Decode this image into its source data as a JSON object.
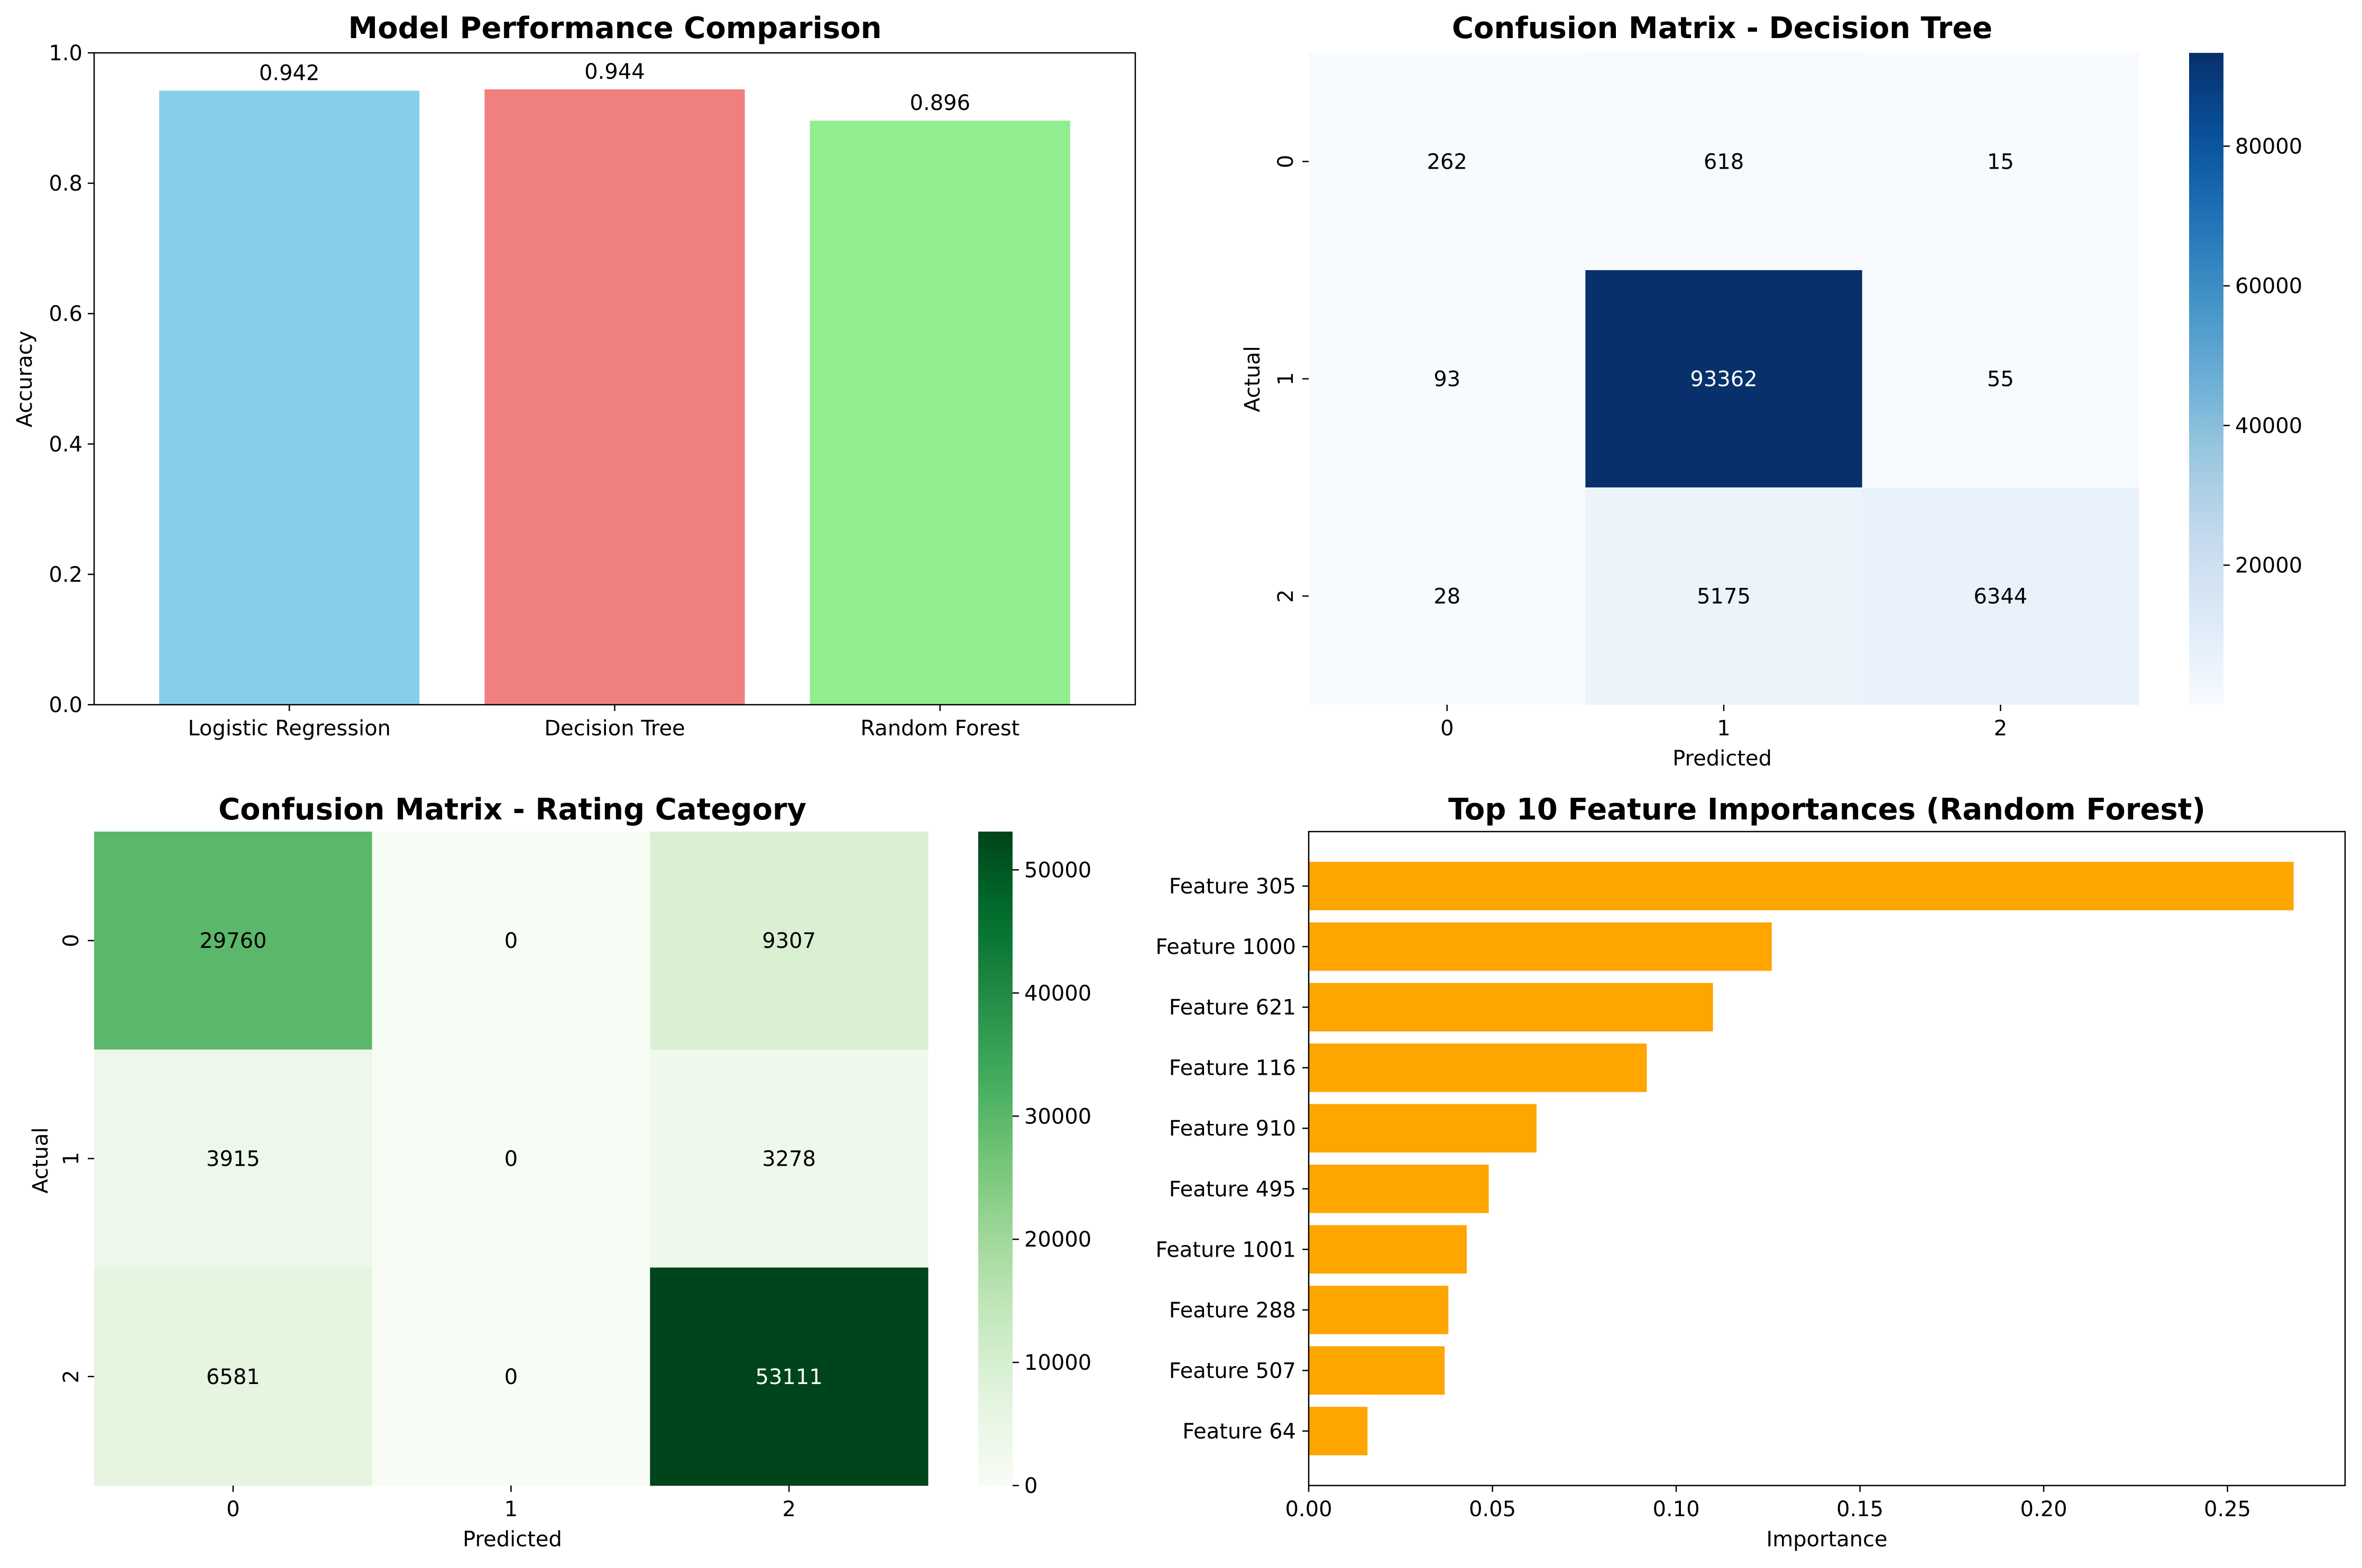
{
  "chart_data": [
    {
      "type": "bar",
      "title": "Model Performance Comparison",
      "xlabel": "",
      "ylabel": "Accuracy",
      "ylim": [
        0,
        1.0
      ],
      "yticks": [
        "0.0",
        "0.2",
        "0.4",
        "0.6",
        "0.8",
        "1.0"
      ],
      "categories": [
        "Logistic Regression",
        "Decision Tree",
        "Random Forest"
      ],
      "values": [
        0.942,
        0.944,
        0.896
      ],
      "value_labels": [
        "0.942",
        "0.944",
        "0.896"
      ],
      "colors": [
        "#87ceeb",
        "#f08080",
        "#90ee90"
      ]
    },
    {
      "type": "heatmap",
      "title": "Confusion Matrix - Decision Tree",
      "xlabel": "Predicted",
      "ylabel": "Actual",
      "xticks": [
        "0",
        "1",
        "2"
      ],
      "yticks": [
        "0",
        "1",
        "2"
      ],
      "matrix": [
        [
          262,
          618,
          15
        ],
        [
          93,
          93362,
          55
        ],
        [
          28,
          5175,
          6344
        ]
      ],
      "colormap": "Blues",
      "colorbar_range": [
        15,
        93362
      ],
      "colorbar_ticks": [
        "20000",
        "40000",
        "60000",
        "80000"
      ]
    },
    {
      "type": "heatmap",
      "title": "Confusion Matrix - Rating Category",
      "xlabel": "Predicted",
      "ylabel": "Actual",
      "xticks": [
        "0",
        "1",
        "2"
      ],
      "yticks": [
        "0",
        "1",
        "2"
      ],
      "matrix": [
        [
          29760,
          0,
          9307
        ],
        [
          3915,
          0,
          3278
        ],
        [
          6581,
          0,
          53111
        ]
      ],
      "colormap": "Greens",
      "colorbar_range": [
        0,
        53111
      ],
      "colorbar_ticks": [
        "0",
        "10000",
        "20000",
        "30000",
        "40000",
        "50000"
      ]
    },
    {
      "type": "bar",
      "orientation": "horizontal",
      "title": "Top 10 Feature Importances (Random Forest)",
      "xlabel": "Importance",
      "ylabel": "",
      "xlim": [
        0,
        0.282
      ],
      "xticks": [
        "0.00",
        "0.05",
        "0.10",
        "0.15",
        "0.20",
        "0.25"
      ],
      "categories": [
        "Feature 305",
        "Feature 1000",
        "Feature 621",
        "Feature 116",
        "Feature 910",
        "Feature 495",
        "Feature 1001",
        "Feature 288",
        "Feature 507",
        "Feature 64"
      ],
      "values": [
        0.268,
        0.126,
        0.11,
        0.092,
        0.062,
        0.049,
        0.043,
        0.038,
        0.037,
        0.016
      ],
      "color": "#ffa500"
    }
  ]
}
